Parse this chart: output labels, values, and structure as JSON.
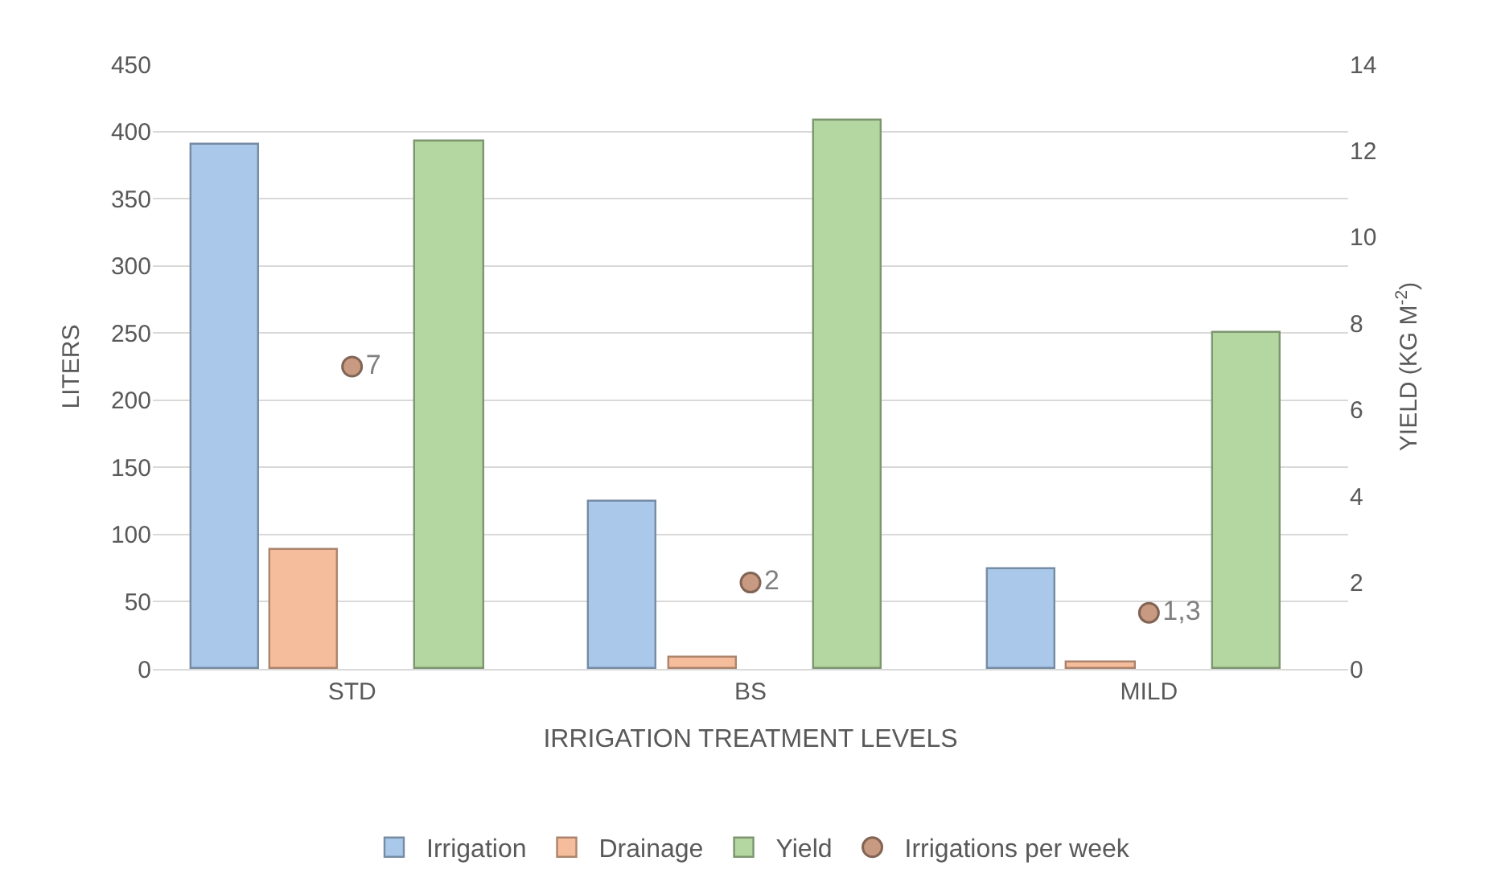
{
  "chart_data": {
    "type": "bar",
    "categories": [
      "STD",
      "BS",
      "MILD"
    ],
    "xlabel": "IRRIGATION TREATMENT LEVELS",
    "ylabel": "LITERS",
    "y2label": "YIELD (KG M$^{-2}$)",
    "series": [
      {
        "name": "Irrigation",
        "color": "#a9c8ea",
        "values": [
          390,
          125,
          74
        ]
      },
      {
        "name": "Drainage",
        "color": "#f6bd9c",
        "values": [
          88,
          8,
          5
        ]
      },
      {
        "name": "Yield",
        "color": "#b4d6a0",
        "values": [
          12.2,
          12.7,
          7.8
        ],
        "axis": "y2"
      },
      {
        "name": "Irrigations per week",
        "type": "scatter",
        "color": "#c99a82",
        "values": [
          7,
          2,
          1.3
        ],
        "value_labels": [
          "7",
          "2",
          "1,3"
        ],
        "axis": "y2",
        "marker": "circle"
      }
    ],
    "ylim": [
      0,
      450
    ],
    "yticks": [
      0,
      50,
      100,
      150,
      200,
      250,
      300,
      350,
      400,
      450
    ],
    "y2lim": [
      0,
      14
    ],
    "y2ticks": [
      0,
      2,
      4,
      6,
      8,
      10,
      12,
      14
    ],
    "grid": "y",
    "legend": "bottom"
  }
}
